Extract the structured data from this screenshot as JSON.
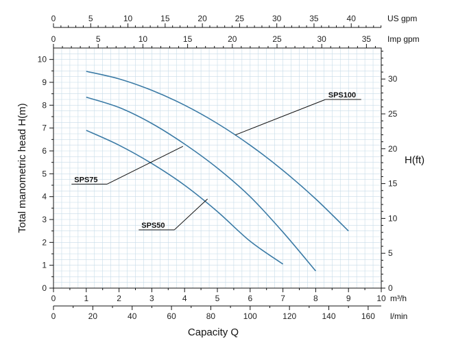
{
  "chart_data": {
    "type": "line",
    "xlabel": "Capacity Q",
    "ylabel": "Total manometric head H(m)",
    "ylabel_right": "H(ft)",
    "x_unit": "m³/h",
    "xlim": [
      0,
      10
    ],
    "ylim": [
      0,
      10.5
    ],
    "grid": true,
    "axes": {
      "bottom_m3h": {
        "unit": "m³/h",
        "ticks": [
          0,
          1,
          2,
          3,
          4,
          5,
          6,
          7,
          8,
          9,
          10
        ]
      },
      "bottom_lmin": {
        "unit": "l/min",
        "ticks": [
          0,
          20,
          40,
          60,
          80,
          100,
          120,
          140,
          160
        ]
      },
      "top_usgpm": {
        "unit": "US gpm",
        "ticks": [
          0,
          5,
          10,
          15,
          20,
          25,
          30,
          35,
          40
        ]
      },
      "top_impgpm": {
        "unit": "Imp gpm",
        "ticks": [
          0,
          5,
          10,
          15,
          20,
          25,
          30,
          35
        ]
      },
      "left_m": {
        "unit": "m",
        "ticks": [
          0,
          1,
          2,
          3,
          4,
          5,
          6,
          7,
          8,
          9,
          10
        ]
      },
      "right_ft": {
        "unit": "ft",
        "ticks": [
          0,
          5,
          10,
          15,
          20,
          25,
          30
        ]
      }
    },
    "series": [
      {
        "name": "SPS100",
        "color": "#3a7aa5",
        "x": [
          1,
          2,
          3,
          4,
          5,
          6,
          7,
          8,
          9
        ],
        "y": [
          9.48,
          9.15,
          8.65,
          8.0,
          7.2,
          6.25,
          5.15,
          3.9,
          2.5
        ],
        "label_pos": [
          8.3,
          8.25
        ],
        "label_anchor": [
          5.55,
          6.7
        ]
      },
      {
        "name": "SPS75",
        "color": "#3a7aa5",
        "x": [
          1,
          2,
          3,
          4,
          5,
          6,
          7,
          8
        ],
        "y": [
          8.35,
          7.9,
          7.2,
          6.3,
          5.25,
          4.0,
          2.45,
          0.75
        ],
        "label_pos": [
          0.55,
          4.55
        ],
        "label_anchor": [
          3.95,
          6.2
        ]
      },
      {
        "name": "SPS50",
        "color": "#3a7aa5",
        "x": [
          1,
          2,
          3,
          4,
          5,
          6,
          7
        ],
        "y": [
          6.9,
          6.25,
          5.45,
          4.5,
          3.35,
          2.05,
          1.05
        ],
        "label_pos": [
          2.6,
          2.55
        ],
        "label_anchor": [
          4.7,
          3.9
        ]
      }
    ]
  },
  "colors": {
    "grid": "#c6dbe8",
    "axis": "#111111",
    "curve": "#3a7aa5"
  }
}
